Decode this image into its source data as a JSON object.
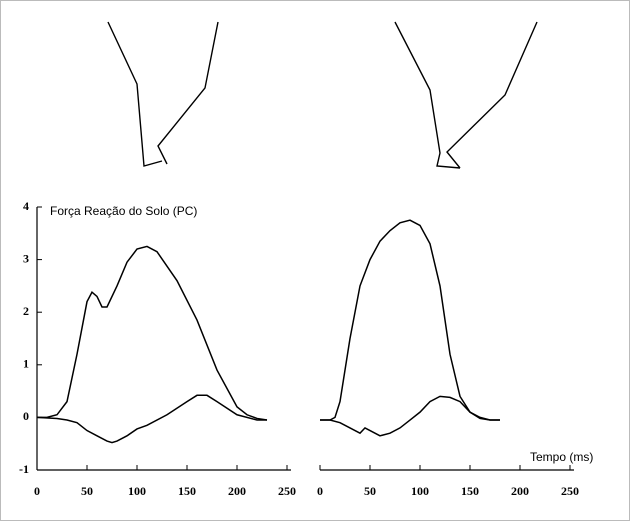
{
  "chart_data": [
    {
      "type": "line",
      "title": "Força Reação do Solo (PC)",
      "color": "#000000",
      "xlim": [
        0,
        250
      ],
      "xticks": [
        0,
        50,
        100,
        150,
        200,
        250
      ],
      "ylim": [
        -1,
        4
      ],
      "yticks": [
        -1,
        0,
        1,
        2,
        3,
        4
      ],
      "series": [
        {
          "x": [
            0,
            10,
            20,
            30,
            40,
            50,
            55,
            60,
            65,
            70,
            80,
            90,
            100,
            110,
            120,
            140,
            160,
            180,
            200,
            210,
            220,
            230
          ],
          "values": [
            0,
            0,
            0.05,
            0.3,
            1.2,
            2.2,
            2.38,
            2.3,
            2.1,
            2.1,
            2.5,
            2.95,
            3.2,
            3.25,
            3.15,
            2.6,
            1.85,
            0.9,
            0.2,
            0.05,
            -0.02,
            -0.05
          ]
        },
        {
          "x": [
            0,
            20,
            30,
            40,
            50,
            60,
            70,
            75,
            80,
            90,
            100,
            110,
            130,
            150,
            160,
            170,
            180,
            200,
            220,
            230
          ],
          "values": [
            0,
            -0.02,
            -0.05,
            -0.1,
            -0.25,
            -0.35,
            -0.45,
            -0.48,
            -0.45,
            -0.35,
            -0.22,
            -0.15,
            0.05,
            0.3,
            0.42,
            0.42,
            0.3,
            0.05,
            -0.05,
            -0.05
          ]
        }
      ]
    },
    {
      "type": "line",
      "x_label": "Tempo (ms)",
      "color": "#000000",
      "xlim": [
        0,
        250
      ],
      "xticks": [
        0,
        50,
        100,
        150,
        200,
        250
      ],
      "ylim": [
        -1,
        4
      ],
      "series": [
        {
          "x": [
            0,
            10,
            15,
            20,
            30,
            40,
            50,
            60,
            70,
            80,
            90,
            100,
            110,
            120,
            130,
            140,
            150,
            160,
            170,
            180
          ],
          "values": [
            -0.05,
            -0.05,
            0,
            0.3,
            1.5,
            2.5,
            3.0,
            3.35,
            3.55,
            3.7,
            3.75,
            3.65,
            3.3,
            2.5,
            1.2,
            0.4,
            0.1,
            0,
            -0.05,
            -0.05
          ]
        },
        {
          "x": [
            0,
            10,
            20,
            30,
            40,
            45,
            50,
            60,
            70,
            80,
            90,
            100,
            110,
            120,
            130,
            140,
            150,
            160,
            170,
            180
          ],
          "values": [
            -0.05,
            -0.05,
            -0.1,
            -0.2,
            -0.3,
            -0.2,
            -0.25,
            -0.35,
            -0.3,
            -0.2,
            -0.05,
            0.1,
            0.3,
            0.4,
            0.38,
            0.3,
            0.1,
            -0.02,
            -0.05,
            -0.05
          ]
        }
      ]
    }
  ]
}
